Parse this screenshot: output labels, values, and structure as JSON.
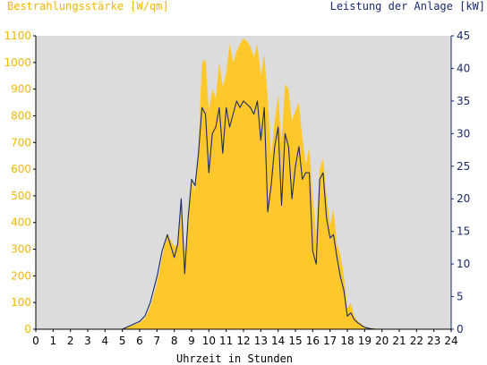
{
  "chart_data": {
    "type": "area",
    "left_axis_title": "Bestrahlungsstärke [W/qm]",
    "right_axis_title": "Leistung der Anlage [kW]",
    "xlabel": "Uhrzeit in Stunden",
    "xlim": [
      0,
      24
    ],
    "ylim_left": [
      0,
      1100
    ],
    "ylim_right": [
      0,
      45
    ],
    "x_ticks": [
      "0",
      "1",
      "2",
      "3",
      "4",
      "5",
      "6",
      "7",
      "8",
      "9",
      "10",
      "11",
      "12",
      "13",
      "14",
      "15",
      "16",
      "17",
      "18",
      "19",
      "20",
      "21",
      "22",
      "23",
      "24"
    ],
    "y_ticks_left": [
      "0",
      "100",
      "200",
      "300",
      "400",
      "500",
      "600",
      "700",
      "800",
      "900",
      "1000",
      "1100"
    ],
    "y_ticks_right": [
      "0",
      "5",
      "10",
      "15",
      "20",
      "25",
      "30",
      "35",
      "40",
      "45"
    ],
    "grid": false,
    "colors": {
      "plot_background": "#dcdcdc",
      "irradiance_fill": "#ffc82a",
      "power_line": "#1a2a6c",
      "left_axis_text": "#f2b800",
      "right_axis_text": "#1a2a6c"
    },
    "series": [
      {
        "name": "Bestrahlungsstärke [W/qm]",
        "kind": "area",
        "axis": "left",
        "x": [
          0,
          5,
          5.5,
          6,
          6.3,
          6.6,
          7,
          7.3,
          7.6,
          8,
          8.2,
          8.4,
          8.6,
          8.8,
          9,
          9.2,
          9.4,
          9.6,
          9.8,
          10,
          10.2,
          10.4,
          10.6,
          10.8,
          11,
          11.2,
          11.4,
          11.6,
          11.8,
          12,
          12.2,
          12.4,
          12.6,
          12.8,
          13,
          13.2,
          13.4,
          13.6,
          13.8,
          14,
          14.2,
          14.4,
          14.6,
          14.8,
          15,
          15.2,
          15.4,
          15.6,
          15.8,
          16,
          16.2,
          16.4,
          16.6,
          16.8,
          17,
          17.2,
          17.4,
          17.6,
          17.8,
          18,
          18.2,
          18.4,
          18.6,
          18.8,
          19,
          19.3,
          19.6,
          20,
          20.3,
          24
        ],
        "y": [
          0,
          0,
          12,
          25,
          40,
          80,
          170,
          270,
          360,
          310,
          320,
          450,
          280,
          420,
          560,
          520,
          680,
          1000,
          1010,
          820,
          900,
          870,
          1000,
          910,
          960,
          1070,
          1000,
          1040,
          1070,
          1090,
          1080,
          1060,
          1020,
          1070,
          950,
          1030,
          870,
          650,
          780,
          880,
          700,
          920,
          900,
          780,
          820,
          850,
          720,
          620,
          680,
          500,
          350,
          600,
          640,
          500,
          390,
          450,
          320,
          280,
          200,
          80,
          100,
          50,
          30,
          20,
          10,
          5,
          3,
          0,
          0,
          0
        ]
      },
      {
        "name": "Leistung der Anlage [kW]",
        "kind": "line",
        "axis": "right",
        "x": [
          0,
          5,
          5.5,
          6,
          6.3,
          6.6,
          7,
          7.3,
          7.6,
          8,
          8.2,
          8.4,
          8.6,
          8.8,
          9,
          9.2,
          9.4,
          9.6,
          9.8,
          10,
          10.2,
          10.4,
          10.6,
          10.8,
          11,
          11.2,
          11.4,
          11.6,
          11.8,
          12,
          12.2,
          12.4,
          12.6,
          12.8,
          13,
          13.2,
          13.4,
          13.6,
          13.8,
          14,
          14.2,
          14.4,
          14.6,
          14.8,
          15,
          15.2,
          15.4,
          15.6,
          15.8,
          16,
          16.2,
          16.4,
          16.6,
          16.8,
          17,
          17.2,
          17.4,
          17.6,
          17.8,
          18,
          18.2,
          18.4,
          18.6,
          18.8,
          19,
          19.3,
          19.6,
          20,
          20.3,
          24
        ],
        "y": [
          0,
          0,
          0.6,
          1.2,
          2,
          4,
          8,
          12,
          14.5,
          11,
          13,
          20,
          8.5,
          17,
          23,
          22,
          27,
          34,
          33,
          24,
          30,
          31,
          34,
          27,
          34,
          31,
          33,
          35,
          34,
          35,
          34.5,
          34,
          33,
          35,
          29,
          34,
          18,
          22,
          28,
          31,
          19,
          30,
          28,
          20,
          25,
          28,
          23,
          24,
          24,
          12,
          10,
          23,
          24,
          17,
          14,
          14.5,
          11,
          8,
          6,
          2,
          2.5,
          1.5,
          1,
          0.6,
          0.3,
          0.1,
          0,
          0,
          0,
          0
        ]
      }
    ]
  }
}
